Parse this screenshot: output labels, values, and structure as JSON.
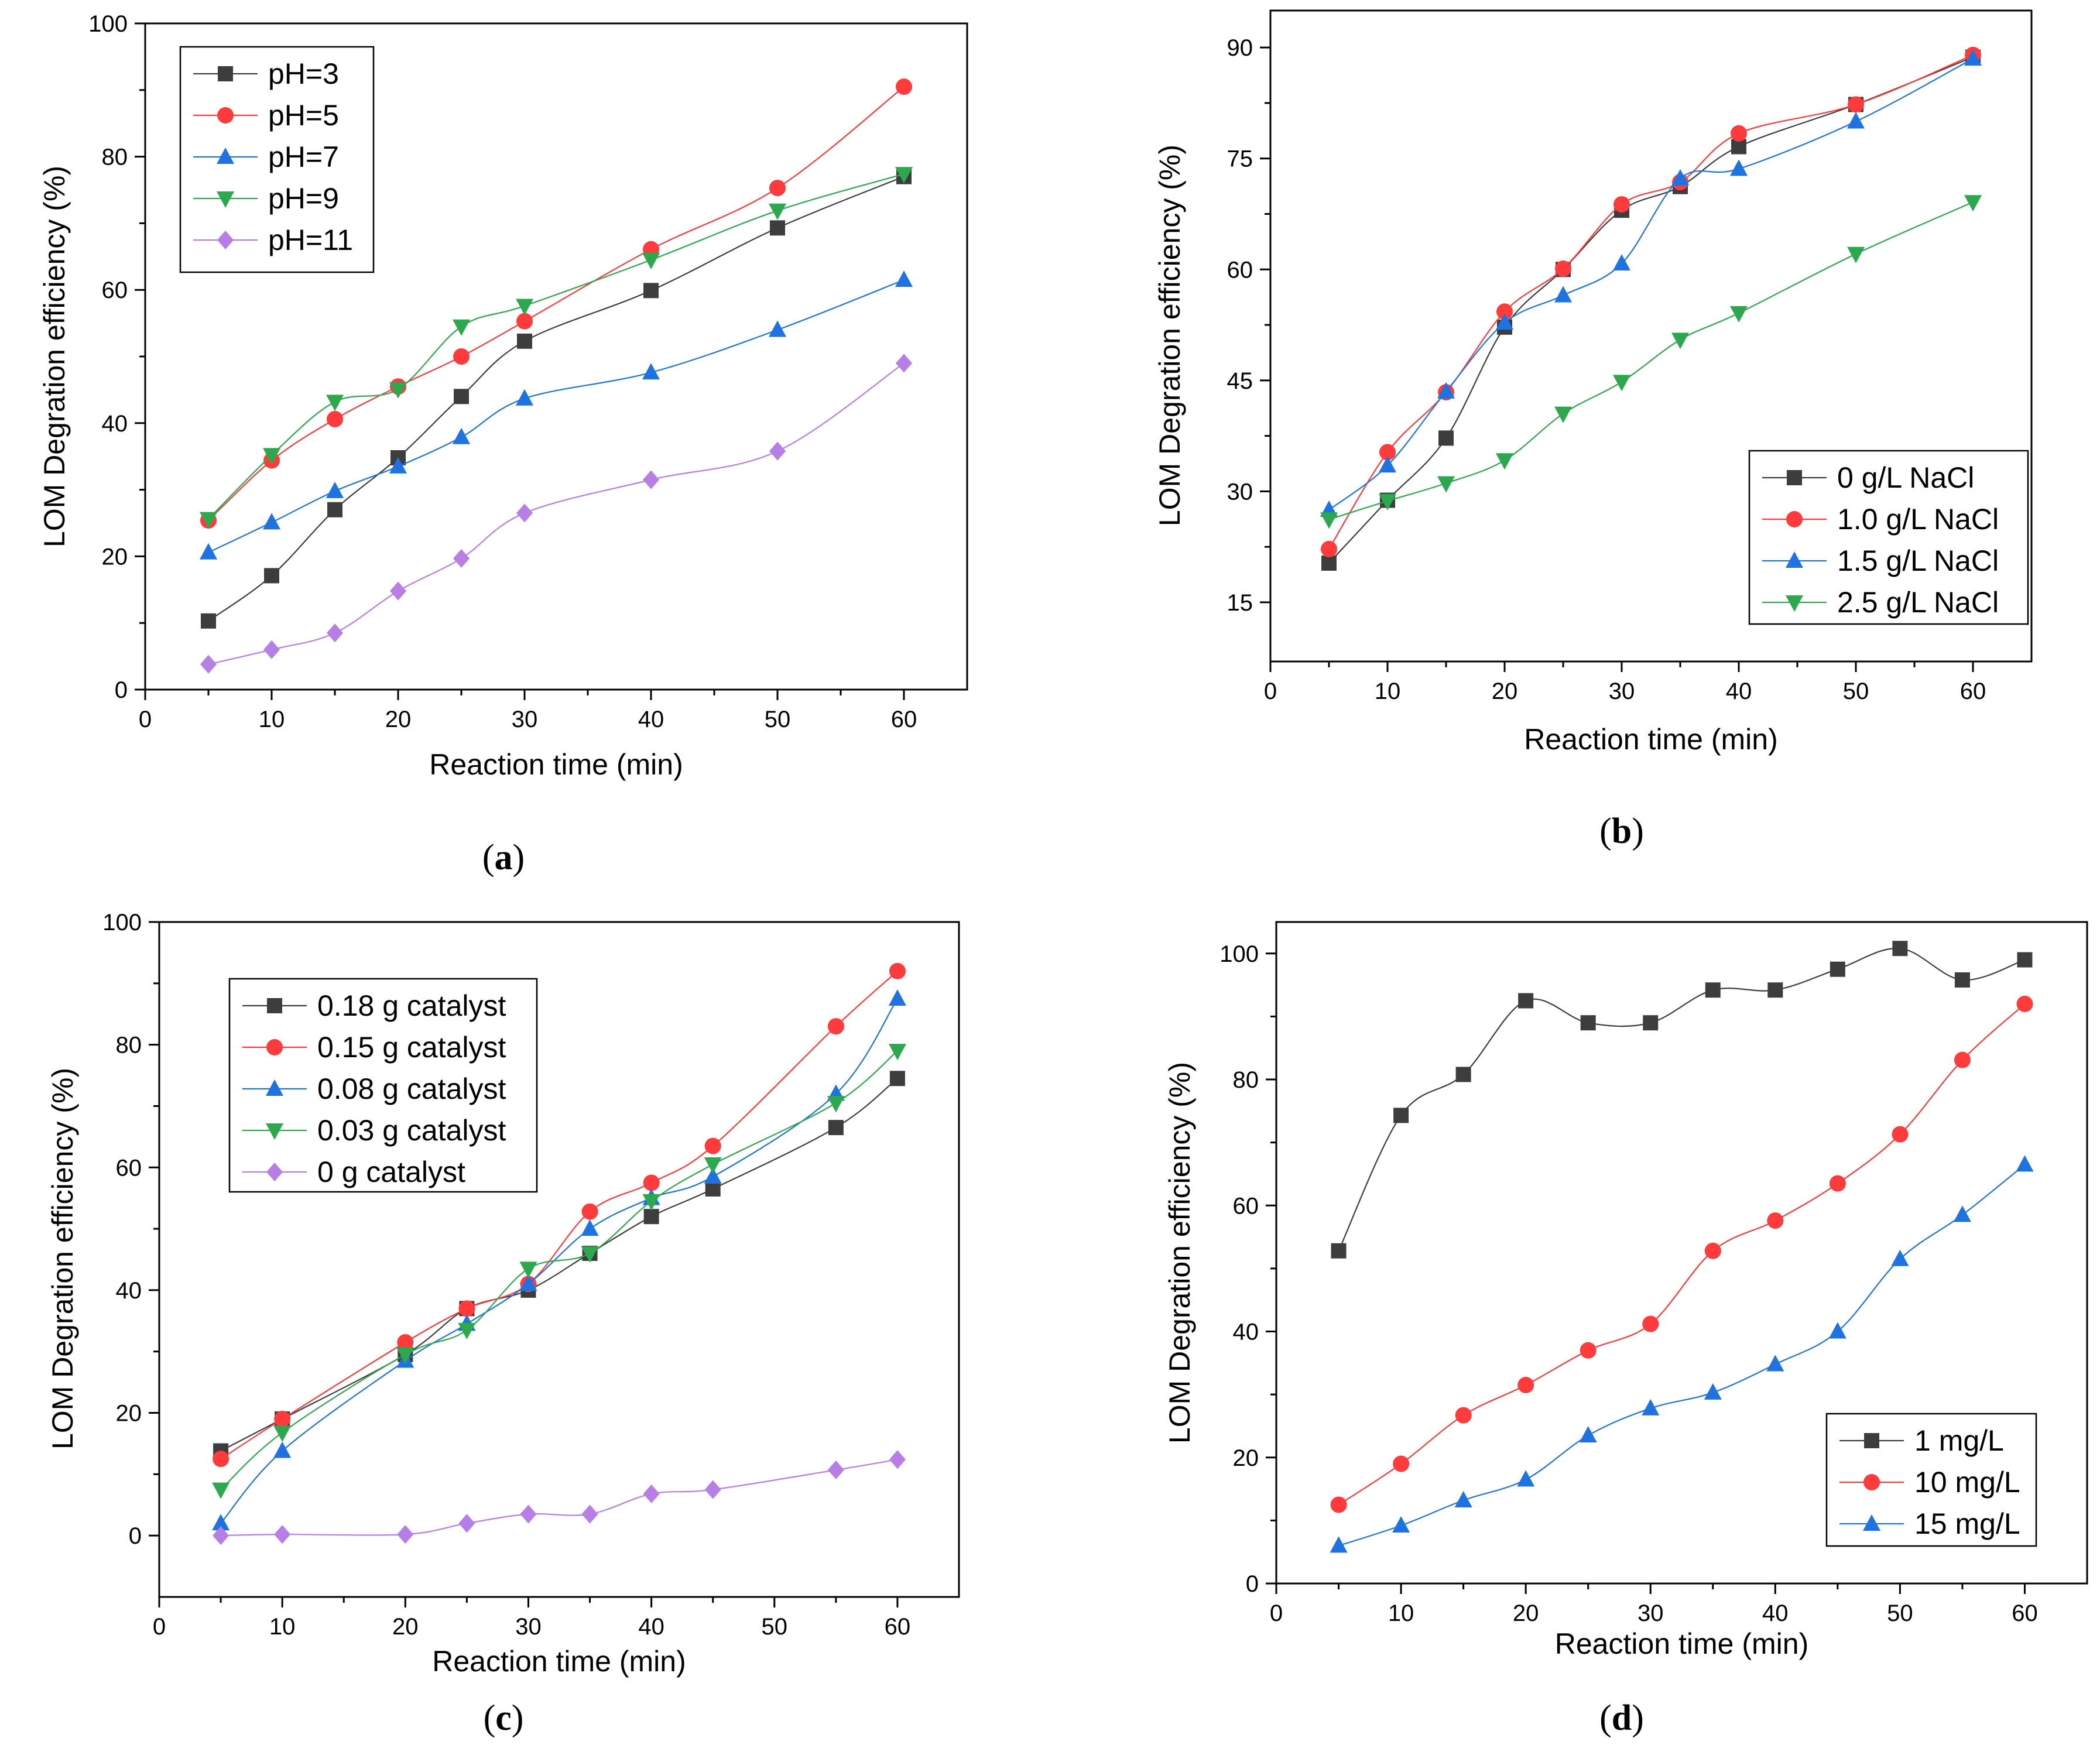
{
  "chart_data": [
    {
      "type": "line",
      "panel": "a",
      "caption": {
        "open": "(",
        "letter": "a",
        "close": ")"
      },
      "xlabel": "Reaction  time (min)",
      "ylabel": "LOM Degration efficiency (%)",
      "xlim": [
        0,
        65
      ],
      "ylim": [
        0,
        100
      ],
      "xticks": [
        0,
        10,
        20,
        30,
        40,
        50,
        60
      ],
      "yticks": [
        0,
        20,
        40,
        60,
        80,
        100
      ],
      "legend_position": "top-left",
      "series": [
        {
          "name": "pH=3",
          "color": "#3d3d3d",
          "marker": "square",
          "x": [
            5,
            10,
            15,
            20,
            25,
            30,
            40,
            50,
            60
          ],
          "values": [
            10.3,
            17.1,
            27.0,
            34.8,
            44.0,
            52.3,
            59.9,
            69.3,
            77.0
          ]
        },
        {
          "name": "pH=5",
          "color": "#ff3b3b",
          "marker": "circle",
          "x": [
            5,
            10,
            15,
            20,
            25,
            30,
            40,
            50,
            60
          ],
          "values": [
            25.4,
            34.4,
            40.6,
            45.5,
            50.0,
            55.3,
            66.1,
            75.3,
            90.5
          ]
        },
        {
          "name": "pH=7",
          "color": "#1f73e0",
          "marker": "triangle-up",
          "x": [
            5,
            10,
            15,
            20,
            25,
            30,
            40,
            50,
            60
          ],
          "values": [
            20.6,
            25.1,
            29.8,
            33.5,
            37.9,
            43.7,
            47.6,
            54.0,
            61.5
          ]
        },
        {
          "name": "pH=9",
          "color": "#2ea84f",
          "marker": "triangle-down",
          "x": [
            5,
            10,
            15,
            20,
            25,
            30,
            40,
            50,
            60
          ],
          "values": [
            25.6,
            35.2,
            43.2,
            45.1,
            54.5,
            57.6,
            64.5,
            71.9,
            77.4
          ]
        },
        {
          "name": "pH=11",
          "color": "#b77ee6",
          "marker": "diamond",
          "x": [
            5,
            10,
            15,
            20,
            25,
            30,
            40,
            50,
            60
          ],
          "values": [
            3.8,
            6.0,
            8.5,
            14.8,
            19.7,
            26.5,
            31.5,
            35.8,
            49.0
          ]
        }
      ]
    },
    {
      "type": "line",
      "panel": "b",
      "caption": {
        "open": "(",
        "letter": "b",
        "close": ")"
      },
      "xlabel": "Reaction  time (min)",
      "ylabel": "LOM Degration efficiency (%)",
      "xlim": [
        0,
        65
      ],
      "ylim": [
        7,
        95
      ],
      "xticks": [
        0,
        10,
        20,
        30,
        40,
        50,
        60
      ],
      "yticks": [
        15,
        30,
        45,
        60,
        75,
        90
      ],
      "legend_position": "bottom-right",
      "series": [
        {
          "name": "0 g/L NaCl",
          "color": "#3d3d3d",
          "marker": "square",
          "x": [
            5,
            10,
            15,
            20,
            25,
            30,
            35,
            40,
            50,
            60
          ],
          "values": [
            20.3,
            28.8,
            37.2,
            52.2,
            60.0,
            68.0,
            71.2,
            76.6,
            82.3,
            88.7
          ]
        },
        {
          "name": "1.0 g/L NaCl",
          "color": "#ff3b3b",
          "marker": "circle",
          "x": [
            5,
            10,
            15,
            20,
            25,
            30,
            35,
            40,
            50,
            60
          ],
          "values": [
            22.2,
            35.3,
            43.4,
            54.3,
            60.1,
            68.8,
            71.8,
            78.4,
            82.3,
            89.0
          ]
        },
        {
          "name": "1.5 g/L NaCl",
          "color": "#1f73e0",
          "marker": "triangle-up",
          "x": [
            5,
            10,
            15,
            20,
            25,
            30,
            35,
            40,
            50,
            60
          ],
          "values": [
            27.5,
            33.5,
            43.5,
            52.8,
            56.5,
            60.8,
            72.3,
            73.6,
            80.0,
            88.5
          ]
        },
        {
          "name": "2.5 g/L NaCl",
          "color": "#2ea84f",
          "marker": "triangle-down",
          "x": [
            5,
            10,
            15,
            20,
            25,
            30,
            35,
            40,
            50,
            60
          ],
          "values": [
            26.2,
            28.7,
            31.1,
            34.2,
            40.5,
            44.8,
            50.5,
            54.1,
            62.1,
            69.1
          ]
        }
      ]
    },
    {
      "type": "line",
      "panel": "c",
      "caption": {
        "open": "(",
        "letter": "c",
        "close": ")"
      },
      "xlabel": "Reaction  time (min)",
      "ylabel": "LOM Degration efficiency (%)",
      "xlim": [
        0,
        65
      ],
      "ylim": [
        -10,
        100
      ],
      "xticks": [
        0,
        10,
        20,
        30,
        40,
        50,
        60
      ],
      "yticks": [
        0,
        20,
        40,
        60,
        80,
        100
      ],
      "legend_position": "top-left",
      "series": [
        {
          "name": "0.18 g catalyst",
          "color": "#3d3d3d",
          "marker": "square",
          "x": [
            5,
            10,
            20,
            25,
            30,
            35,
            40,
            45,
            55,
            60
          ],
          "values": [
            13.8,
            19.0,
            29.5,
            37.0,
            40.0,
            46.0,
            52.0,
            56.5,
            66.5,
            74.5
          ]
        },
        {
          "name": "0.15 g catalyst",
          "color": "#ff3b3b",
          "marker": "circle",
          "x": [
            5,
            10,
            20,
            25,
            30,
            35,
            40,
            45,
            55,
            60
          ],
          "values": [
            12.5,
            19.0,
            31.5,
            37.0,
            41.0,
            52.8,
            57.5,
            63.5,
            83.0,
            92.0
          ]
        },
        {
          "name": "0.08 g catalyst",
          "color": "#1f73e0",
          "marker": "triangle-up",
          "x": [
            5,
            10,
            20,
            25,
            30,
            35,
            40,
            45,
            55,
            60
          ],
          "values": [
            2.0,
            13.8,
            28.5,
            34.5,
            41.0,
            50.0,
            55.0,
            58.5,
            72.0,
            87.5
          ]
        },
        {
          "name": "0.03 g catalyst",
          "color": "#2ea84f",
          "marker": "triangle-down",
          "x": [
            5,
            10,
            20,
            25,
            30,
            35,
            40,
            45,
            55,
            60
          ],
          "values": [
            7.5,
            16.8,
            29.5,
            33.5,
            43.5,
            46.0,
            54.5,
            60.5,
            70.5,
            79.0
          ]
        },
        {
          "name": "0 g catalyst",
          "color": "#b77ee6",
          "marker": "diamond",
          "x": [
            5,
            10,
            20,
            25,
            30,
            35,
            40,
            45,
            55,
            60
          ],
          "values": [
            0.0,
            0.2,
            0.2,
            2.0,
            3.5,
            3.5,
            6.8,
            7.5,
            10.7,
            12.4
          ]
        }
      ]
    },
    {
      "type": "line",
      "panel": "d",
      "caption": {
        "open": "(",
        "letter": "d",
        "close": ")"
      },
      "xlabel": "Reaction  time (min)",
      "ylabel": "LOM Degration efficiency (%)",
      "xlim": [
        0,
        65
      ],
      "ylim": [
        0,
        105
      ],
      "xticks": [
        0,
        10,
        20,
        30,
        40,
        50,
        60
      ],
      "yticks": [
        0,
        20,
        40,
        60,
        80,
        100
      ],
      "legend_position": "bottom-right",
      "series": [
        {
          "name": "1 mg/L",
          "color": "#3d3d3d",
          "marker": "square",
          "x": [
            5,
            10,
            15,
            20,
            25,
            30,
            35,
            40,
            45,
            50,
            55,
            60
          ],
          "values": [
            52.8,
            74.3,
            80.8,
            92.5,
            89.0,
            89.0,
            94.2,
            94.2,
            97.5,
            100.8,
            95.8,
            99.0
          ]
        },
        {
          "name": "10 mg/L",
          "color": "#ff3b3b",
          "marker": "circle",
          "x": [
            5,
            10,
            15,
            20,
            25,
            30,
            35,
            40,
            45,
            50,
            55,
            60
          ],
          "values": [
            12.5,
            19.0,
            26.7,
            31.5,
            37.0,
            41.2,
            52.8,
            57.6,
            63.5,
            71.3,
            83.1,
            92.0
          ]
        },
        {
          "name": "15 mg/L",
          "color": "#1f73e0",
          "marker": "triangle-up",
          "x": [
            5,
            10,
            15,
            20,
            25,
            30,
            35,
            40,
            45,
            50,
            55,
            60
          ],
          "values": [
            6.0,
            9.2,
            13.2,
            16.5,
            23.5,
            27.8,
            30.3,
            34.8,
            40.0,
            51.5,
            58.5,
            66.5
          ]
        }
      ]
    }
  ]
}
